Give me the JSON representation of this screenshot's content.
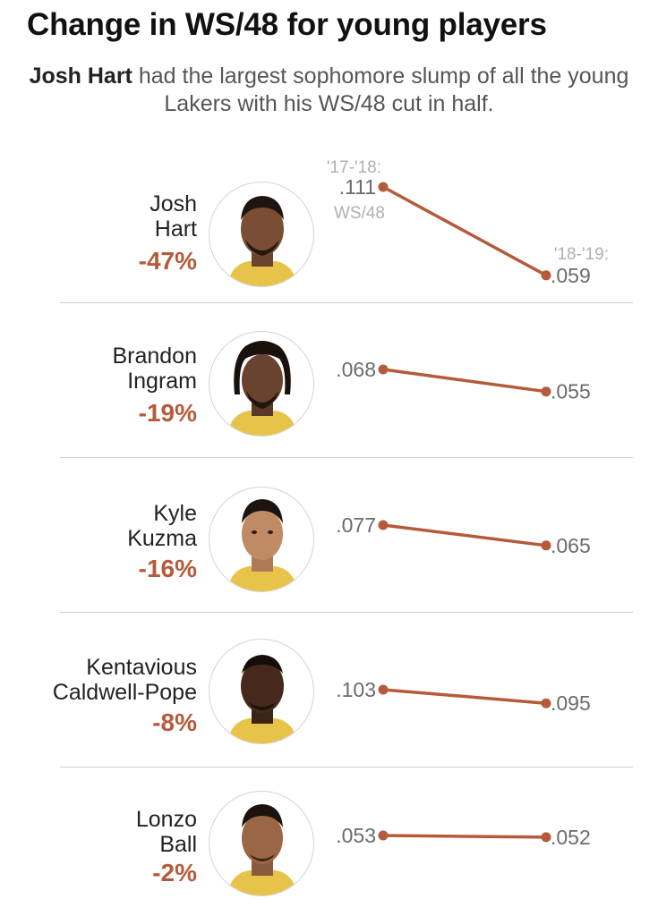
{
  "title": "Change in WS/48 for young players",
  "subtitle": {
    "highlight": "Josh Hart",
    "rest": " had the largest sophomore slump of all the young Lakers with his WS/48 cut in half."
  },
  "labels": {
    "season1": "'17-'18:",
    "season2": "'18-'19:",
    "metric": "WS/48"
  },
  "colors": {
    "accent": "#b55a3a",
    "divider": "#cfcfcf",
    "value_text": "#6b6b6b",
    "label_text": "#b0b0b0"
  },
  "players": [
    {
      "name_line1": "Josh",
      "name_line2": "Hart",
      "change": "-47%",
      "v1_label": ".111",
      "v2_label": ".059"
    },
    {
      "name_line1": "Brandon",
      "name_line2": "Ingram",
      "change": "-19%",
      "v1_label": ".068",
      "v2_label": ".055"
    },
    {
      "name_line1": "Kyle",
      "name_line2": "Kuzma",
      "change": "-16%",
      "v1_label": ".077",
      "v2_label": ".065"
    },
    {
      "name_line1": "Kentavious",
      "name_line2": "Caldwell-Pope",
      "change": "-8%",
      "v1_label": ".103",
      "v2_label": ".095"
    },
    {
      "name_line1": "Lonzo",
      "name_line2": "Ball",
      "change": "-2%",
      "v1_label": ".053",
      "v2_label": ".052"
    }
  ],
  "chart_data": {
    "type": "line",
    "chart_style": "slope",
    "x": [
      "'17-'18",
      "'18-'19"
    ],
    "title": "Change in WS/48 for young players",
    "ylabel": "WS/48",
    "series": [
      {
        "name": "Josh Hart",
        "values": [
          0.111,
          0.059
        ]
      },
      {
        "name": "Brandon Ingram",
        "values": [
          0.068,
          0.055
        ]
      },
      {
        "name": "Kyle Kuzma",
        "values": [
          0.077,
          0.065
        ]
      },
      {
        "name": "Kentavious Caldwell-Pope",
        "values": [
          0.103,
          0.095
        ]
      },
      {
        "name": "Lonzo Ball",
        "values": [
          0.053,
          0.052
        ]
      }
    ]
  }
}
